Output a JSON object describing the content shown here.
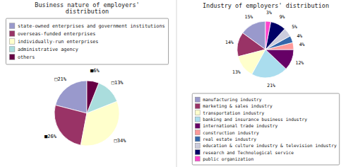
{
  "chart_data": [
    {
      "type": "pie",
      "title": "Business nature of employers'\ndistribution",
      "categories": [
        "state-owned enterprises and government institutions",
        "overseas-funded enterprises",
        "individually-run enterprises",
        "administrative agency",
        "others"
      ],
      "values": [
        21,
        26,
        34,
        13,
        6
      ],
      "value_labels": [
        "□21%",
        "■26%",
        "□34%",
        "□13%",
        "■6%"
      ],
      "colors": [
        "#9999CC",
        "#993366",
        "#FFFFCC",
        "#AADDDD",
        "#660044"
      ],
      "data_labels": true,
      "legend": "center"
    },
    {
      "type": "pie",
      "title": "Industry of employers' distribution",
      "categories": [
        "manufacturing industry",
        "marketing & sales industry",
        "transportation industry",
        "banking and insurance business industry",
        "international trade industry",
        "construction industry",
        "real estate industry",
        "education & culture industry & television industry",
        "research and Technological service",
        "public organization"
      ],
      "values": [
        15,
        14,
        13,
        21,
        12,
        4,
        4,
        5,
        9,
        3
      ],
      "value_labels": [
        "15%",
        "14%",
        "13%",
        "21%",
        "12%",
        "4%",
        "4%",
        "5%",
        "9%",
        "3%"
      ],
      "colors": [
        "#9999CC",
        "#993366",
        "#FFFFCC",
        "#AADDEE",
        "#660066",
        "#FF9999",
        "#3366AA",
        "#CCCCDD",
        "#000066",
        "#FF44CC"
      ],
      "data_labels": true,
      "legend": "center"
    }
  ]
}
